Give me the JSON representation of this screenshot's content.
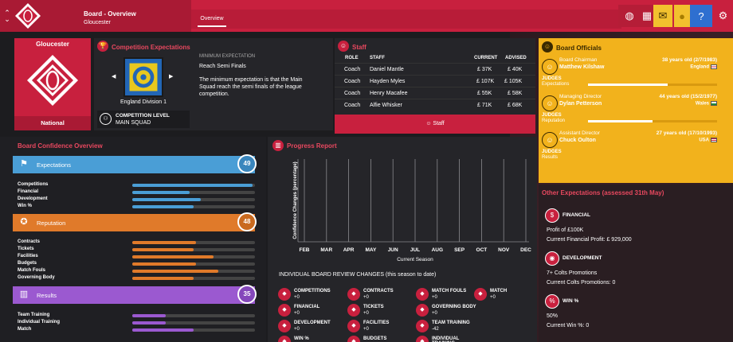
{
  "header": {
    "breadcrumb": "Board - Overview",
    "club": "Gloucester",
    "tab": "Overview",
    "icons": [
      "globe-icon",
      "calendar-icon",
      "inbox-icon",
      "coin-icon",
      "help-icon",
      "gear-icon"
    ],
    "accent": "#c8203e"
  },
  "club_panel": {
    "name": "Gloucester",
    "reputation": "National"
  },
  "competition": {
    "title": "Competition Expectations",
    "name": "England Division 1",
    "level_label": "COMPETITION LEVEL",
    "level_value": "MAIN SQUAD",
    "min_label": "MINIMUM EXPECTATION",
    "min_value": "Reach Semi Finals",
    "min_desc": "The minimum expectation is that the Main Squad reach the semi finals of the league competition."
  },
  "staff": {
    "title": "Staff",
    "headers": {
      "role": "ROLE",
      "staff": "STAFF",
      "current": "CURRENT",
      "advised": "ADVISED"
    },
    "rows": [
      {
        "role": "Coach",
        "name": "Daniel Mantle",
        "current": "£ 37K",
        "advised": "£ 40K"
      },
      {
        "role": "Coach",
        "name": "Hayden Myles",
        "current": "£ 107K",
        "advised": "£ 105K"
      },
      {
        "role": "Coach",
        "name": "Henry Macafee",
        "current": "£ 55K",
        "advised": "£ 58K"
      },
      {
        "role": "Coach",
        "name": "Alfie Whisker",
        "current": "£ 71K",
        "advised": "£ 68K"
      }
    ],
    "button": "Staff"
  },
  "board": {
    "title": "Board Officials",
    "officials": [
      {
        "role": "Board Chairman",
        "name": "Matthew Kilshaw",
        "age": "38 years old (2/7/1983)",
        "nation": "England",
        "judges_label": "JUDGES",
        "judges": "Expectations",
        "judge_level": 0.62
      },
      {
        "role": "Managing Director",
        "name": "Dylan Petterson",
        "age": "44 years old (15/2/1977)",
        "nation": "Wales",
        "judges_label": "JUDGES",
        "judges": "Reputation",
        "judge_level": 0.5
      },
      {
        "role": "Assistant Director",
        "name": "Chuck Oulton",
        "age": "27 years old (17/10/1993)",
        "nation": "USA",
        "judges_label": "JUDGES",
        "judges": "Results",
        "judge_level": 0.0
      }
    ]
  },
  "confidence": {
    "title": "Board Confidence Overview",
    "groups": [
      {
        "label": "Expectations",
        "score": "49",
        "color": "#4a9ed6",
        "items": [
          {
            "label": "Competitions",
            "level": 0.98
          },
          {
            "label": "Financial",
            "level": 0.47
          },
          {
            "label": "Development",
            "level": 0.56
          },
          {
            "label": "Win %",
            "level": 0.5
          }
        ]
      },
      {
        "label": "Reputation",
        "score": "48",
        "color": "#e07a2a",
        "items": [
          {
            "label": "Contracts",
            "level": 0.52
          },
          {
            "label": "Tickets",
            "level": 0.5
          },
          {
            "label": "Facilities",
            "level": 0.66
          },
          {
            "label": "Budgets",
            "level": 0.52
          },
          {
            "label": "Match Fouls",
            "level": 0.7
          },
          {
            "label": "Governing Body",
            "level": 0.5
          }
        ]
      },
      {
        "label": "Results",
        "score": "35",
        "color": "#9b59d0",
        "items": [
          {
            "label": "Team Training",
            "level": 0.27
          },
          {
            "label": "Individual Training",
            "level": 0.27
          },
          {
            "label": "Match",
            "level": 0.5
          }
        ]
      }
    ]
  },
  "progress": {
    "title": "Progress Report",
    "review_title": "INDIVIDUAL BOARD REVIEW CHANGES (this season to date)",
    "reviews": [
      {
        "label": "COMPETITIONS",
        "value": "+0"
      },
      {
        "label": "CONTRACTS",
        "value": "+0"
      },
      {
        "label": "MATCH FOULS",
        "value": "+0"
      },
      {
        "label": "MATCH",
        "value": "+0"
      },
      {
        "label": "FINANCIAL",
        "value": "+0"
      },
      {
        "label": "TICKETS",
        "value": "+0"
      },
      {
        "label": "GOVERNING BODY",
        "value": "+0"
      },
      {
        "label": "DEVELOPMENT",
        "value": "+0"
      },
      {
        "label": "FACILITIES",
        "value": "+0"
      },
      {
        "label": "TEAM TRAINING",
        "value": "-42"
      },
      {
        "label": "WIN %",
        "value": ""
      },
      {
        "label": "BUDGETS",
        "value": ""
      },
      {
        "label": "INDIVIDUAL TRAINING",
        "value": ""
      }
    ]
  },
  "chart_data": {
    "type": "line",
    "categories": [
      "FEB",
      "MAR",
      "APR",
      "MAY",
      "JUN",
      "JUL",
      "AUG",
      "SEP",
      "OCT",
      "NOV",
      "DEC"
    ],
    "series": [],
    "xlabel": "Current Season",
    "ylabel": "Confidence Changes (percentage)",
    "grid": true
  },
  "other": {
    "title": "Other Expectations (assessed 31th May)",
    "items": [
      {
        "label": "FINANCIAL",
        "line1": "Profit of £100K",
        "line2": "Current Financial Profit: £ 929,000"
      },
      {
        "label": "DEVELOPMENT",
        "line1": "7+ Colts Promotions",
        "line2": "Current Colts Promotions: 0"
      },
      {
        "label": "WIN %",
        "line1": "50%",
        "line2": "Current Win %: 0"
      }
    ]
  }
}
